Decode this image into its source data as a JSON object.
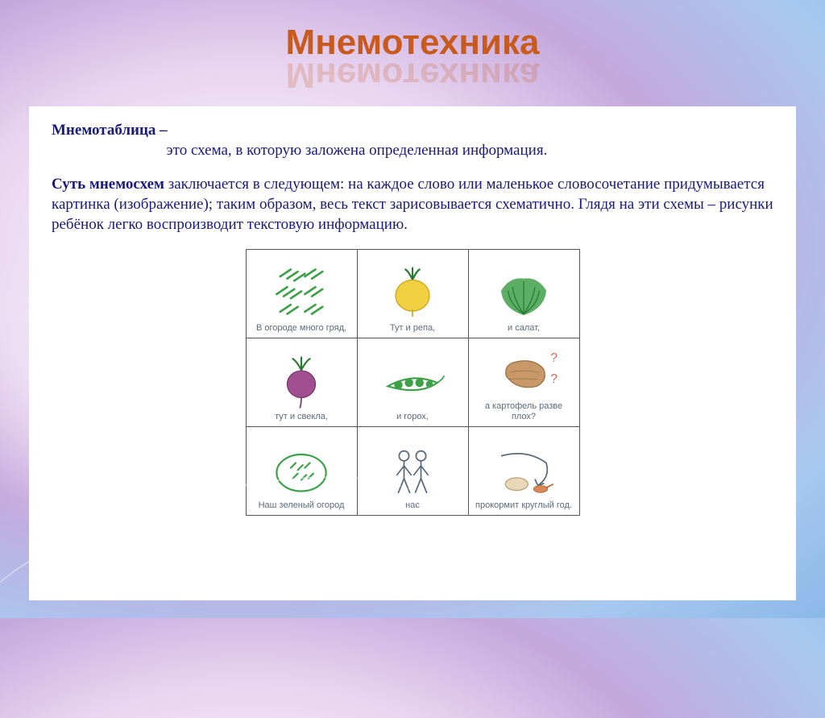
{
  "title": "Мнемотехника",
  "definition": {
    "term": "Мнемотаблица  –",
    "body": "это схема, в которую заложена определенная информация."
  },
  "essence": {
    "term": "Суть мнемосхем",
    "body": " заключается в следующем: на каждое слово или маленькое словосочетание придумывается картинка (изображение); таким образом, весь текст зарисовывается схематично. Глядя на эти схемы – рисунки ребёнок легко воспроизводит текстовую информацию."
  },
  "table": {
    "cells": [
      [
        {
          "caption": "В огороде много гряд,",
          "icon": "rows"
        },
        {
          "caption": "Тут и репа,",
          "icon": "turnip"
        },
        {
          "caption": "и салат,",
          "icon": "lettuce"
        }
      ],
      [
        {
          "caption": "тут и свекла,",
          "icon": "beet"
        },
        {
          "caption": "и горох,",
          "icon": "peas"
        },
        {
          "caption": "а картофель разве плох?",
          "icon": "potato"
        }
      ],
      [
        {
          "caption": "Наш зеленый огород",
          "icon": "plot"
        },
        {
          "caption": "нас",
          "icon": "people"
        },
        {
          "caption": "прокормит круглый год.",
          "icon": "year"
        }
      ]
    ]
  },
  "colors": {
    "title": "#c85a1e",
    "text": "#1a1a7a",
    "caption": "#5c6b7a",
    "green": "#3fa04a",
    "darkgreen": "#2a7a35",
    "yellow": "#f0d040",
    "purple": "#a05090",
    "brown": "#c89868",
    "eggshell": "#e8d8b8",
    "gray": "#5c6b7a",
    "red": "#d06a5a"
  }
}
